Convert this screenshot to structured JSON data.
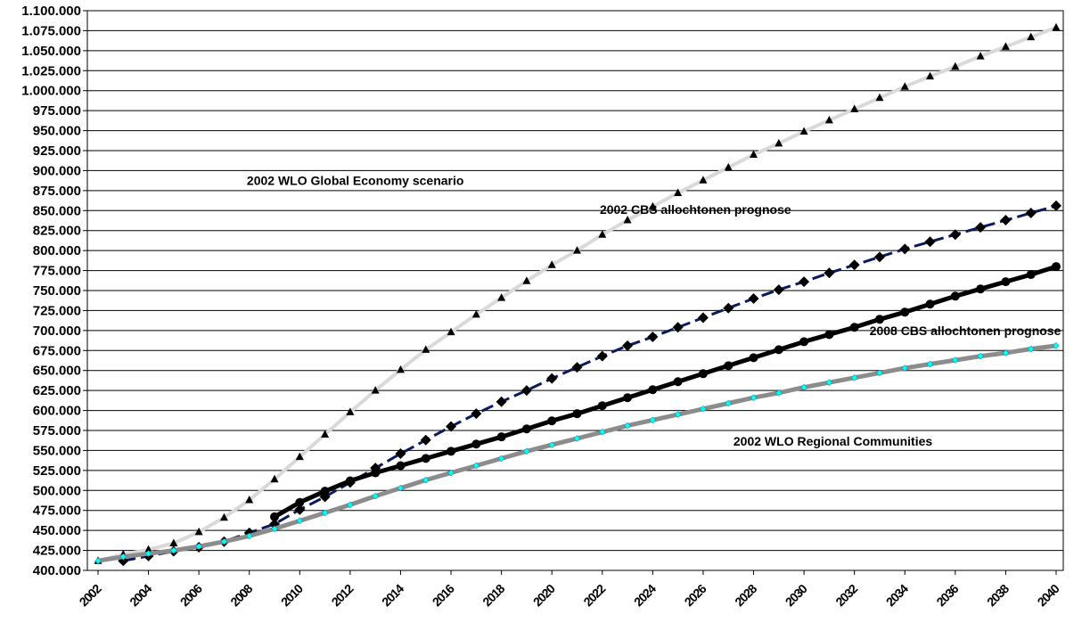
{
  "chart_data": {
    "type": "line",
    "title": "",
    "xlabel": "",
    "ylabel": "",
    "ylim": [
      400000,
      1100000
    ],
    "xlim": [
      2002,
      2040
    ],
    "y_tick_step": 25000,
    "y_tick_labels": [
      "400.000",
      "425.000",
      "450.000",
      "475.000",
      "500.000",
      "525.000",
      "550.000",
      "575.000",
      "600.000",
      "625.000",
      "650.000",
      "675.000",
      "700.000",
      "725.000",
      "750.000",
      "775.000",
      "800.000",
      "825.000",
      "850.000",
      "875.000",
      "900.000",
      "925.000",
      "950.000",
      "975.000",
      "1.000.000",
      "1.025.000",
      "1.050.000",
      "1.075.000",
      "1.100.000"
    ],
    "x_tick_labels": [
      "2002",
      "2004",
      "2006",
      "2008",
      "2010",
      "2012",
      "2014",
      "2016",
      "2018",
      "2020",
      "2022",
      "2024",
      "2026",
      "2028",
      "2030",
      "2032",
      "2034",
      "2036",
      "2038",
      "2040"
    ],
    "grid": "horizontal",
    "legend": "none",
    "series": [
      {
        "name": "2002 WLO Global Economy scenario",
        "color": "#d9d9d9",
        "marker_color": "#000000",
        "marker": "triangle",
        "x": [
          2002,
          2003,
          2004,
          2005,
          2006,
          2007,
          2008,
          2009,
          2010,
          2011,
          2012,
          2013,
          2014,
          2015,
          2016,
          2017,
          2018,
          2019,
          2020,
          2021,
          2022,
          2023,
          2024,
          2025,
          2026,
          2027,
          2028,
          2029,
          2030,
          2031,
          2032,
          2033,
          2034,
          2035,
          2036,
          2037,
          2038,
          2039,
          2040
        ],
        "values": [
          412000,
          420000,
          426000,
          434000,
          448000,
          466000,
          488000,
          514000,
          542000,
          570000,
          598000,
          625000,
          651000,
          676000,
          698000,
          720000,
          741000,
          762000,
          782000,
          800000,
          820000,
          838000,
          855000,
          872000,
          888000,
          904000,
          920000,
          934000,
          949000,
          963000,
          977000,
          991000,
          1005000,
          1018000,
          1030000,
          1043000,
          1055000,
          1067000,
          1079000
        ]
      },
      {
        "name": "2002 CBS allochtonen  prognose",
        "color": "#0a1a5c",
        "marker_color": "#000000",
        "marker": "diamond",
        "x": [
          2003,
          2004,
          2005,
          2006,
          2007,
          2008,
          2009,
          2010,
          2011,
          2012,
          2013,
          2014,
          2015,
          2016,
          2017,
          2018,
          2019,
          2020,
          2021,
          2022,
          2023,
          2024,
          2025,
          2026,
          2027,
          2028,
          2029,
          2030,
          2031,
          2032,
          2033,
          2034,
          2035,
          2036,
          2037,
          2038,
          2039,
          2040
        ],
        "values": [
          412000,
          418000,
          424000,
          429000,
          436000,
          447000,
          458000,
          476000,
          492000,
          510000,
          528000,
          546000,
          563000,
          580000,
          596000,
          611000,
          625000,
          640000,
          654000,
          668000,
          681000,
          692000,
          704000,
          716000,
          728000,
          740000,
          751000,
          761000,
          772000,
          782000,
          792000,
          802000,
          811000,
          820000,
          829000,
          838000,
          847000,
          856000
        ]
      },
      {
        "name": "2008 CBS allochtonen prognose",
        "color": "#000000",
        "marker_color": "#000000",
        "marker": "circle",
        "x": [
          2009,
          2010,
          2011,
          2012,
          2013,
          2014,
          2015,
          2016,
          2017,
          2018,
          2019,
          2020,
          2021,
          2022,
          2023,
          2024,
          2025,
          2026,
          2027,
          2028,
          2029,
          2030,
          2031,
          2032,
          2033,
          2034,
          2035,
          2036,
          2037,
          2038,
          2039,
          2040
        ],
        "values": [
          467000,
          485000,
          499000,
          512000,
          522000,
          531000,
          540000,
          549000,
          558000,
          567000,
          577000,
          587000,
          596000,
          606000,
          616000,
          626000,
          636000,
          646000,
          656000,
          666000,
          676000,
          686000,
          695000,
          704000,
          714000,
          723000,
          733000,
          743000,
          752000,
          761000,
          770000,
          780000
        ]
      },
      {
        "name": "2002 WLO Regional Communities",
        "color": "#8c8c8c",
        "marker_color": "#00ffff",
        "marker": "diamond-small",
        "x": [
          2002,
          2003,
          2004,
          2005,
          2006,
          2007,
          2008,
          2009,
          2010,
          2011,
          2012,
          2013,
          2014,
          2015,
          2016,
          2017,
          2018,
          2019,
          2020,
          2021,
          2022,
          2023,
          2024,
          2025,
          2026,
          2027,
          2028,
          2029,
          2030,
          2031,
          2032,
          2033,
          2034,
          2035,
          2036,
          2037,
          2038,
          2039,
          2040
        ],
        "values": [
          412000,
          417000,
          421000,
          425000,
          430000,
          436000,
          443000,
          452000,
          462000,
          472000,
          482000,
          493000,
          503000,
          513000,
          522000,
          531000,
          540000,
          549000,
          557000,
          565000,
          573000,
          581000,
          588000,
          595000,
          602000,
          609000,
          616000,
          622000,
          629000,
          635000,
          641000,
          647000,
          653000,
          658000,
          663000,
          668000,
          672000,
          677000,
          681000
        ]
      }
    ],
    "annotations": [
      {
        "text": "2002 WLO Global Economy scenario",
        "x": 2007.9,
        "y": 882000
      },
      {
        "text": "2002 CBS allochtonen  prognose",
        "x": 2021.9,
        "y": 846000
      },
      {
        "text": "2008 CBS allochtonen prognose",
        "x": 2032.6,
        "y": 694000
      },
      {
        "text": "2002 WLO Regional Communities",
        "x": 2027.2,
        "y": 556000
      }
    ]
  }
}
